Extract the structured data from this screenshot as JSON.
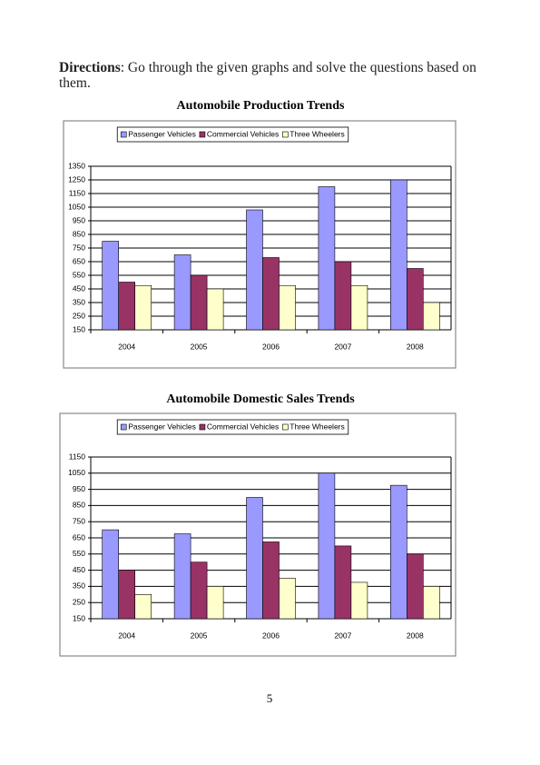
{
  "directions": {
    "label": "Directions",
    "text": ": Go through the given graphs and solve the questions based on them."
  },
  "chart_data": [
    {
      "type": "bar",
      "title": "Automobile Production Trends",
      "categories": [
        "2004",
        "2005",
        "2006",
        "2007",
        "2008"
      ],
      "series": [
        {
          "name": "Passenger Vehicles",
          "color": "#9999ff",
          "values": [
            800,
            700,
            1030,
            1200,
            1250
          ]
        },
        {
          "name": "Commercial Vehicles",
          "color": "#993366",
          "values": [
            500,
            550,
            680,
            650,
            600
          ]
        },
        {
          "name": "Three Wheelers",
          "color": "#ffffcc",
          "values": [
            475,
            450,
            475,
            475,
            350
          ]
        }
      ],
      "ylim": [
        150,
        1350
      ],
      "yticks": [
        150,
        250,
        350,
        450,
        550,
        650,
        750,
        850,
        950,
        1050,
        1150,
        1250,
        1350
      ],
      "grid": true,
      "legend": "top"
    },
    {
      "type": "bar",
      "title": "Automobile Domestic Sales Trends",
      "categories": [
        "2004",
        "2005",
        "2006",
        "2007",
        "2008"
      ],
      "series": [
        {
          "name": "Passenger Vehicles",
          "color": "#9999ff",
          "values": [
            700,
            675,
            900,
            1050,
            975
          ]
        },
        {
          "name": "Commercial Vehicles",
          "color": "#993366",
          "values": [
            450,
            500,
            625,
            600,
            550
          ]
        },
        {
          "name": "Three Wheelers",
          "color": "#ffffcc",
          "values": [
            300,
            350,
            400,
            375,
            350
          ]
        }
      ],
      "ylim": [
        150,
        1150
      ],
      "yticks": [
        150,
        250,
        350,
        450,
        550,
        650,
        750,
        850,
        950,
        1050,
        1150
      ],
      "grid": true,
      "legend": "top"
    }
  ],
  "page_number": "5"
}
